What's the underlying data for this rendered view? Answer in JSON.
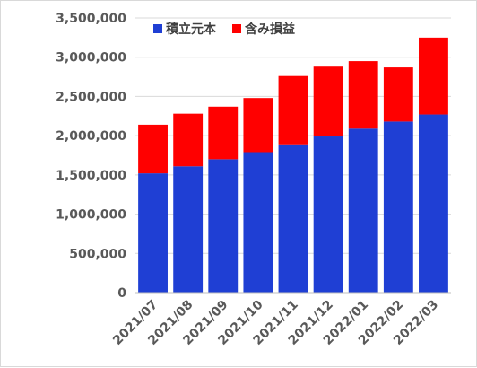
{
  "chart_data": {
    "type": "bar",
    "stacked": true,
    "title": "",
    "xlabel": "",
    "ylabel": "",
    "categories": [
      "2021/07",
      "2021/08",
      "2021/09",
      "2021/10",
      "2021/11",
      "2021/12",
      "2022/01",
      "2022/02",
      "2022/03"
    ],
    "series": [
      {
        "name": "積立元本",
        "color": "#1f3fd4",
        "values": [
          1520000,
          1610000,
          1700000,
          1790000,
          1890000,
          1990000,
          2090000,
          2180000,
          2270000
        ]
      },
      {
        "name": "含み損益",
        "color": "#ff0000",
        "values": [
          620000,
          670000,
          670000,
          690000,
          870000,
          890000,
          860000,
          690000,
          980000
        ]
      }
    ],
    "ylim": [
      0,
      3500000
    ],
    "yticks": [
      "0",
      "500,000",
      "1,000,000",
      "1,500,000",
      "2,000,000",
      "2,500,000",
      "3,000,000",
      "3,500,000"
    ],
    "grid": true,
    "legend_position": "top"
  }
}
